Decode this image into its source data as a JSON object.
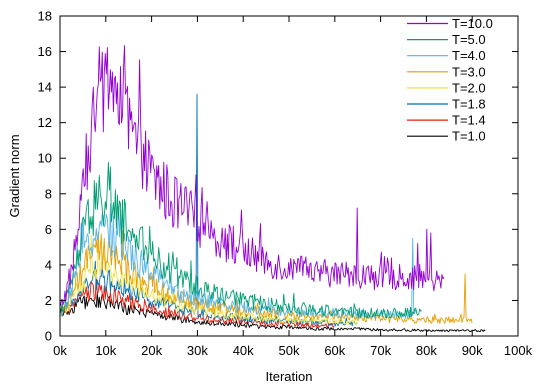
{
  "chart_data": {
    "type": "line",
    "title": "",
    "xlabel": "Iteration",
    "ylabel": "Gradient norm",
    "xlim": [
      0,
      100000
    ],
    "ylim": [
      0,
      18
    ],
    "xticks": [
      {
        "value": 0,
        "label": "0k"
      },
      {
        "value": 10000,
        "label": "10k"
      },
      {
        "value": 20000,
        "label": "20k"
      },
      {
        "value": 30000,
        "label": "30k"
      },
      {
        "value": 40000,
        "label": "40k"
      },
      {
        "value": 50000,
        "label": "50k"
      },
      {
        "value": 60000,
        "label": "60k"
      },
      {
        "value": 70000,
        "label": "70k"
      },
      {
        "value": 80000,
        "label": "80k"
      },
      {
        "value": 90000,
        "label": "90k"
      },
      {
        "value": 100000,
        "label": "100k"
      }
    ],
    "yticks": [
      {
        "value": 0,
        "label": "0"
      },
      {
        "value": 2,
        "label": "2"
      },
      {
        "value": 4,
        "label": "4"
      },
      {
        "value": 6,
        "label": "6"
      },
      {
        "value": 8,
        "label": "8"
      },
      {
        "value": 10,
        "label": "10"
      },
      {
        "value": 12,
        "label": "12"
      },
      {
        "value": 14,
        "label": "14"
      },
      {
        "value": 16,
        "label": "16"
      },
      {
        "value": 18,
        "label": "18"
      }
    ],
    "grid": false,
    "legend_position": "top-right",
    "series": [
      {
        "name": "T=10.0",
        "color": "#9400d3",
        "x": [
          0,
          2000,
          4000,
          6000,
          8000,
          10000,
          12000,
          14000,
          16000,
          18000,
          20000,
          25000,
          30000,
          35000,
          40000,
          45000,
          50000,
          55000,
          60000,
          65000,
          70000,
          75000,
          80000,
          84000
        ],
        "y": [
          1.5,
          3.0,
          6.0,
          10.0,
          13.0,
          14.5,
          14.0,
          12.5,
          11.0,
          10.0,
          9.0,
          7.5,
          6.5,
          5.5,
          4.8,
          4.2,
          3.8,
          3.6,
          3.5,
          3.4,
          3.3,
          3.3,
          3.2,
          3.0
        ],
        "spikes": [
          [
            65000,
            7.2
          ],
          [
            78000,
            5.2
          ],
          [
            80000,
            6.0
          ],
          [
            81000,
            5.8
          ]
        ]
      },
      {
        "name": "T=5.0",
        "color": "#009e73",
        "x": [
          0,
          2000,
          4000,
          6000,
          8000,
          10000,
          12000,
          15000,
          20000,
          25000,
          30000,
          35000,
          40000,
          45000,
          50000,
          55000,
          60000,
          65000,
          70000,
          75000,
          79000
        ],
        "y": [
          1.3,
          2.5,
          4.5,
          6.5,
          7.5,
          7.5,
          7.0,
          6.0,
          4.5,
          3.5,
          2.8,
          2.3,
          2.0,
          1.8,
          1.6,
          1.5,
          1.4,
          1.3,
          1.3,
          1.3,
          1.4
        ],
        "spikes": [
          [
            11000,
            9.5
          ]
        ]
      },
      {
        "name": "T=4.0",
        "color": "#56b4e9",
        "x": [
          0,
          2000,
          4000,
          6000,
          8000,
          10000,
          12000,
          15000,
          20000,
          25000,
          30000,
          35000,
          40000,
          45000,
          50000,
          55000,
          60000,
          65000,
          70000,
          75000,
          78000
        ],
        "y": [
          1.2,
          2.2,
          3.8,
          5.2,
          6.0,
          6.0,
          5.5,
          4.8,
          3.5,
          2.6,
          2.1,
          1.8,
          1.6,
          1.5,
          1.4,
          1.3,
          1.3,
          1.2,
          1.2,
          1.2,
          1.3
        ],
        "spikes": [
          [
            77000,
            5.5
          ]
        ]
      },
      {
        "name": "T=3.0",
        "color": "#e69f00",
        "x": [
          0,
          2000,
          4000,
          6000,
          8000,
          10000,
          12000,
          15000,
          20000,
          25000,
          30000,
          35000,
          40000,
          45000,
          50000,
          55000,
          60000,
          65000,
          70000,
          75000,
          80000,
          85000,
          90000
        ],
        "y": [
          1.2,
          2.0,
          3.2,
          4.2,
          4.8,
          4.7,
          4.3,
          3.7,
          2.8,
          2.2,
          1.8,
          1.6,
          1.4,
          1.3,
          1.2,
          1.1,
          1.1,
          1.0,
          1.0,
          0.9,
          0.9,
          0.9,
          0.9
        ],
        "spikes": [
          [
            88500,
            3.5
          ]
        ]
      },
      {
        "name": "T=2.0",
        "color": "#f0e442",
        "x": [
          0,
          2000,
          4000,
          6000,
          8000,
          10000,
          12000,
          15000,
          20000,
          25000,
          30000,
          35000,
          40000,
          45000,
          50000,
          55000,
          60000,
          65000
        ],
        "y": [
          1.1,
          1.8,
          2.7,
          3.5,
          3.9,
          3.8,
          3.5,
          3.0,
          2.3,
          1.8,
          1.5,
          1.3,
          1.1,
          1.0,
          0.9,
          0.9,
          0.8,
          0.8
        ],
        "spikes": []
      },
      {
        "name": "T=1.8",
        "color": "#0072b2",
        "x": [
          0,
          2000,
          4000,
          6000,
          8000,
          10000,
          12000,
          15000,
          20000,
          25000,
          30000,
          35000,
          40000,
          45000,
          50000,
          55000,
          60000,
          65000
        ],
        "y": [
          1.1,
          1.7,
          2.4,
          3.0,
          3.3,
          3.2,
          3.0,
          2.6,
          2.0,
          1.6,
          1.3,
          1.1,
          1.0,
          0.9,
          0.8,
          0.8,
          0.7,
          0.7
        ],
        "spikes": [
          [
            30000,
            13.6
          ]
        ]
      },
      {
        "name": "T=1.4",
        "color": "#e51e10",
        "x": [
          0,
          2000,
          4000,
          6000,
          8000,
          10000,
          12000,
          15000,
          20000,
          25000,
          30000,
          35000,
          40000,
          45000,
          50000,
          55000,
          60000
        ],
        "y": [
          1.2,
          1.6,
          2.1,
          2.4,
          2.5,
          2.4,
          2.2,
          1.9,
          1.5,
          1.2,
          1.0,
          0.9,
          0.8,
          0.7,
          0.7,
          0.6,
          0.6
        ],
        "spikes": []
      },
      {
        "name": "T=1.0",
        "color": "#000000",
        "x": [
          0,
          2000,
          4000,
          6000,
          8000,
          10000,
          12000,
          15000,
          20000,
          25000,
          30000,
          35000,
          40000,
          45000,
          50000,
          55000,
          60000,
          65000,
          70000,
          75000,
          80000,
          85000,
          90000,
          93000
        ],
        "y": [
          1.2,
          1.5,
          1.8,
          2.0,
          2.0,
          1.9,
          1.7,
          1.5,
          1.2,
          1.0,
          0.8,
          0.7,
          0.6,
          0.5,
          0.5,
          0.4,
          0.4,
          0.4,
          0.35,
          0.35,
          0.3,
          0.3,
          0.3,
          0.3
        ],
        "spikes": []
      }
    ]
  }
}
